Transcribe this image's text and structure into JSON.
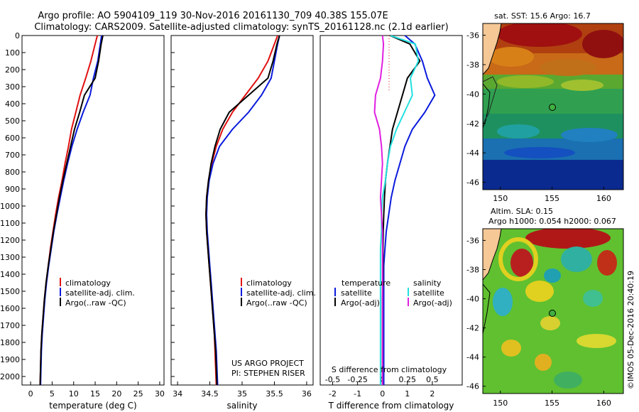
{
  "header": {
    "line1": "Argo profile: AO 5904109_119 30-Nov-2016 20161130_709 40.38S 155.07E",
    "line2": "Climatology: CARS2009. Satellite-adjusted climatology: synTS_20161128.nc (2.1d earlier)"
  },
  "colors": {
    "climatology": "#e01010",
    "satellite": "#0a1adc",
    "argo": "#000000",
    "cyan": "#22e0e0",
    "magenta": "#e020e0"
  },
  "depth_ticks": [
    "0",
    "100",
    "200",
    "300",
    "400",
    "500",
    "600",
    "700",
    "800",
    "900",
    "1000",
    "1100",
    "1200",
    "1300",
    "1400",
    "1500",
    "1600",
    "1700",
    "1800",
    "1900",
    "2000"
  ],
  "temp_panel": {
    "xlabel": "temperature (deg C)",
    "ticks": [
      "0",
      "5",
      "10",
      "15",
      "20",
      "25",
      "30"
    ],
    "legend": [
      "climatology",
      "satellite-adj. clim.",
      "Argo(..raw -QC)"
    ]
  },
  "sal_panel": {
    "xlabel": "salinity",
    "ticks": [
      "34",
      "34.5",
      "35",
      "35.5",
      "36"
    ],
    "legend": [
      "climatology",
      "satellite-adj. clim.",
      "Argo(..raw -QC)"
    ],
    "credit1": "US ARGO PROJECT",
    "credit2": "PI: STEPHEN RISER"
  },
  "diff_panel": {
    "xlabel": "T difference from climatology",
    "top_label": "S difference from climatology",
    "ticks_T": [
      "-2",
      "-1",
      "0",
      "1",
      "2"
    ],
    "ticks_S": [
      "-0.5",
      "-0.25",
      "0",
      "0.25",
      "0.5"
    ],
    "legend_temp_title": "temperature",
    "legend_sal_title": "salinity",
    "legend_temp": [
      "satellite",
      "Argo(-adj)"
    ],
    "legend_sal": [
      "satellite",
      "Argo(-adj)"
    ]
  },
  "sst_map": {
    "title": "sat. SST: 15.6 Argo: 16.7",
    "lat_ticks": [
      "-36",
      "-38",
      "-40",
      "-42",
      "-44",
      "-46"
    ],
    "lon_ticks": [
      "150",
      "155",
      "160"
    ]
  },
  "sla_map": {
    "title1": "Altim. SLA: 0.15",
    "title2": "Argo h1000: 0.054 h2000: 0.067",
    "lat_ticks": [
      "-36",
      "-38",
      "-40",
      "-42",
      "-44",
      "-46"
    ],
    "lon_ticks": [
      "150",
      "155",
      "160"
    ],
    "credit": "©IMOS 05-Dec-2016 20:40:19"
  },
  "chart_data": [
    {
      "type": "line",
      "title": "",
      "xlabel": "temperature (deg C)",
      "ylabel": "",
      "xlim": [
        -2,
        31
      ],
      "ylim": [
        2050,
        0
      ],
      "series": [
        {
          "name": "climatology",
          "x": [
            15.5,
            15.0,
            14.0,
            12.8,
            11.5,
            10.5,
            9.5,
            8.8,
            8.0,
            7.3,
            6.5,
            5.8,
            5.2,
            4.6,
            4.1,
            3.6,
            3.2,
            2.9,
            2.6,
            2.4,
            2.2
          ],
          "y": [
            0,
            50,
            150,
            250,
            350,
            450,
            550,
            650,
            750,
            850,
            950,
            1050,
            1150,
            1250,
            1350,
            1450,
            1550,
            1650,
            1750,
            1850,
            2050
          ]
        },
        {
          "name": "satellite-adj. clim.",
          "x": [
            16.5,
            16.2,
            15.6,
            14.6,
            13.8,
            12.2,
            10.8,
            9.6,
            8.6,
            7.7,
            6.9,
            6.1,
            5.4,
            4.8,
            4.2,
            3.7,
            3.3,
            3.0,
            2.7,
            2.5,
            2.3
          ],
          "y": [
            0,
            50,
            150,
            250,
            350,
            450,
            550,
            650,
            750,
            850,
            950,
            1050,
            1150,
            1250,
            1350,
            1450,
            1550,
            1650,
            1750,
            1850,
            2050
          ]
        },
        {
          "name": "Argo(..raw -QC)",
          "x": [
            16.8,
            16.4,
            15.8,
            15.0,
            12.5,
            11.4,
            10.2,
            9.3,
            8.4,
            7.5,
            6.7,
            6.0,
            5.3,
            4.7,
            4.1,
            3.6,
            3.2,
            2.9,
            2.6,
            2.4,
            2.2
          ],
          "y": [
            0,
            50,
            150,
            250,
            350,
            450,
            550,
            650,
            750,
            850,
            950,
            1050,
            1150,
            1250,
            1350,
            1450,
            1550,
            1650,
            1750,
            1850,
            2050
          ]
        }
      ]
    },
    {
      "type": "line",
      "title": "",
      "xlabel": "salinity",
      "ylabel": "",
      "xlim": [
        33.9,
        36.1
      ],
      "ylim": [
        2050,
        0
      ],
      "series": [
        {
          "name": "climatology",
          "x": [
            35.55,
            35.5,
            35.4,
            35.25,
            35.05,
            34.85,
            34.7,
            34.6,
            34.53,
            34.48,
            34.45,
            34.44,
            34.45,
            34.47,
            34.49,
            34.51,
            34.53,
            34.55,
            34.57,
            34.58,
            34.6
          ],
          "y": [
            0,
            50,
            150,
            250,
            350,
            450,
            550,
            650,
            750,
            850,
            950,
            1050,
            1150,
            1250,
            1350,
            1450,
            1550,
            1650,
            1750,
            1850,
            2050
          ]
        },
        {
          "name": "satellite-adj. clim.",
          "x": [
            35.58,
            35.55,
            35.5,
            35.45,
            35.3,
            35.1,
            34.85,
            34.65,
            34.55,
            34.49,
            34.46,
            34.45,
            34.46,
            34.48,
            34.5,
            34.52,
            34.54,
            34.56,
            34.58,
            34.6,
            34.62
          ],
          "y": [
            0,
            50,
            150,
            250,
            350,
            450,
            550,
            650,
            750,
            850,
            950,
            1050,
            1150,
            1250,
            1350,
            1450,
            1550,
            1650,
            1750,
            1850,
            2050
          ]
        },
        {
          "name": "Argo(..raw -QC)",
          "x": [
            35.58,
            35.54,
            35.48,
            35.4,
            35.1,
            34.8,
            34.66,
            34.58,
            34.52,
            34.48,
            34.45,
            34.44,
            34.45,
            34.47,
            34.49,
            34.51,
            34.53,
            34.55,
            34.57,
            34.59,
            34.61
          ],
          "y": [
            0,
            50,
            150,
            250,
            350,
            450,
            550,
            650,
            750,
            850,
            950,
            1050,
            1150,
            1250,
            1350,
            1450,
            1550,
            1650,
            1750,
            1850,
            2050
          ]
        }
      ]
    },
    {
      "type": "line",
      "title": "S difference from climatology",
      "xlabel": "T difference from climatology",
      "ylabel": "",
      "xlim": [
        -2.5,
        3.2
      ],
      "ylim": [
        2050,
        0
      ],
      "series": [
        {
          "name": "temperature satellite",
          "x": [
            0.9,
            1.3,
            1.6,
            1.8,
            2.1,
            1.7,
            1.2,
            0.9,
            0.7,
            0.5,
            0.35,
            0.25,
            0.15,
            0.1,
            0.05,
            0.05,
            0.05,
            0.05,
            0.05,
            0.05,
            0.05
          ],
          "y": [
            0,
            50,
            150,
            250,
            350,
            450,
            550,
            650,
            750,
            850,
            950,
            1050,
            1150,
            1250,
            1350,
            1450,
            1550,
            1650,
            1750,
            1850,
            2050
          ]
        },
        {
          "name": "temperature Argo(-adj)",
          "x": [
            0.3,
            1.1,
            1.5,
            1.0,
            0.8,
            0.6,
            0.4,
            0.3,
            0.2,
            0.12,
            0.08,
            0.05,
            0.03,
            0.02,
            0.02,
            0.01,
            0.0,
            0.0,
            0.0,
            0.0,
            0.0
          ],
          "y": [
            0,
            50,
            150,
            250,
            350,
            450,
            550,
            650,
            750,
            850,
            950,
            1050,
            1150,
            1250,
            1350,
            1450,
            1550,
            1650,
            1750,
            1850,
            2050
          ]
        },
        {
          "name": "salinity satellite",
          "x": [
            0.08,
            0.33,
            0.36,
            0.28,
            0.3,
            0.22,
            0.14,
            0.08,
            0.05,
            0.03,
            0.0,
            -0.01,
            -0.01,
            -0.02,
            -0.02,
            -0.02,
            -0.02,
            -0.02,
            -0.02,
            -0.02,
            -0.02
          ],
          "y": [
            0,
            50,
            150,
            250,
            350,
            450,
            550,
            650,
            750,
            850,
            950,
            1050,
            1150,
            1250,
            1350,
            1450,
            1550,
            1650,
            1750,
            1850,
            2050
          ]
        },
        {
          "name": "salinity Argo(-adj)",
          "x": [
            0.0,
            0.01,
            0.0,
            -0.02,
            -0.07,
            -0.08,
            -0.03,
            -0.01,
            0.0,
            -0.01,
            -0.02,
            -0.01,
            0.0,
            0.0,
            0.0,
            0.0,
            0.0,
            0.0,
            0.0,
            0.0,
            0.0
          ],
          "y": [
            0,
            50,
            150,
            250,
            350,
            450,
            550,
            650,
            750,
            850,
            950,
            1050,
            1150,
            1250,
            1350,
            1450,
            1550,
            1650,
            1750,
            1850,
            2050
          ]
        }
      ]
    }
  ]
}
